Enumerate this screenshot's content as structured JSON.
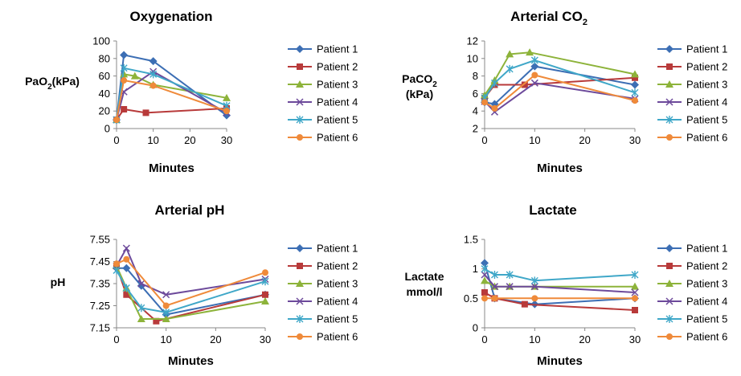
{
  "chart_data": [
    {
      "type": "line",
      "title": "Oxygenation",
      "title_sub": "",
      "ylabel_parts": [
        {
          "t": "PaO"
        },
        {
          "t": "2",
          "sub": true
        },
        {
          "t": "(kPa)"
        }
      ],
      "ylabel_line2": [],
      "xlabel": "Minutes",
      "xticks": [
        0,
        10,
        20,
        30
      ],
      "yticks": [
        0,
        20,
        40,
        60,
        80,
        100
      ],
      "ytick_labels": [
        "0",
        "20",
        "40",
        "60",
        "80",
        "100"
      ],
      "xlim": [
        0,
        30
      ],
      "ylim": [
        0,
        100
      ],
      "series": [
        {
          "name": "Patient 1",
          "x": [
            0,
            2,
            10,
            30
          ],
          "y": [
            10,
            84,
            77,
            15
          ]
        },
        {
          "name": "Patient 2",
          "x": [
            0,
            2,
            8,
            30
          ],
          "y": [
            10,
            22,
            18,
            23
          ]
        },
        {
          "name": "Patient 3",
          "x": [
            0,
            2,
            5,
            10,
            30
          ],
          "y": [
            10,
            62,
            60,
            50,
            35
          ]
        },
        {
          "name": "Patient 4",
          "x": [
            0,
            2,
            10,
            30
          ],
          "y": [
            10,
            42,
            65,
            18
          ]
        },
        {
          "name": "Patient 5",
          "x": [
            0,
            2,
            10,
            30
          ],
          "y": [
            10,
            69,
            62,
            26
          ]
        },
        {
          "name": "Patient 6",
          "x": [
            0,
            2,
            10,
            30
          ],
          "y": [
            10,
            55,
            49,
            20
          ]
        }
      ]
    },
    {
      "type": "line",
      "title": "Arterial CO",
      "title_sub": "2",
      "ylabel_parts": [
        {
          "t": "PaCO"
        },
        {
          "t": "2",
          "sub": true
        }
      ],
      "ylabel_line2": [
        {
          "t": "(kPa)"
        }
      ],
      "xlabel": "Minutes",
      "xticks": [
        0,
        10,
        20,
        30
      ],
      "yticks": [
        2,
        4,
        6,
        8,
        10,
        12
      ],
      "ytick_labels": [
        "2",
        "4",
        "6",
        "8",
        "10",
        "12"
      ],
      "xlim": [
        0,
        30
      ],
      "ylim": [
        2,
        12
      ],
      "series": [
        {
          "name": "Patient 1",
          "x": [
            0,
            2,
            10,
            30
          ],
          "y": [
            5.0,
            4.8,
            9.1,
            7.0
          ]
        },
        {
          "name": "Patient 2",
          "x": [
            0,
            2,
            8,
            30
          ],
          "y": [
            5.5,
            7.0,
            7.0,
            7.8
          ]
        },
        {
          "name": "Patient 3",
          "x": [
            0,
            2,
            5,
            9,
            30
          ],
          "y": [
            5.8,
            7.5,
            10.5,
            10.7,
            8.2
          ]
        },
        {
          "name": "Patient 4",
          "x": [
            0,
            2,
            10,
            30
          ],
          "y": [
            5.1,
            3.9,
            7.2,
            5.4
          ]
        },
        {
          "name": "Patient 5",
          "x": [
            0,
            2,
            5,
            10,
            30
          ],
          "y": [
            5.5,
            7.2,
            8.8,
            9.8,
            6.1
          ]
        },
        {
          "name": "Patient 6",
          "x": [
            0,
            2,
            10,
            30
          ],
          "y": [
            5.0,
            4.3,
            8.1,
            5.2
          ]
        }
      ]
    },
    {
      "type": "line",
      "title": "Arterial pH",
      "title_sub": "",
      "ylabel_parts": [
        {
          "t": "pH"
        }
      ],
      "ylabel_line2": [],
      "xlabel": "Minutes",
      "xticks": [
        0,
        10,
        20,
        30
      ],
      "yticks": [
        7.15,
        7.25,
        7.35,
        7.45,
        7.55
      ],
      "ytick_labels": [
        "7.15",
        "7.25",
        "7.35",
        "7.45",
        "7.55"
      ],
      "xlim": [
        0,
        30
      ],
      "ylim": [
        7.15,
        7.55
      ],
      "series": [
        {
          "name": "Patient 1",
          "x": [
            0,
            2,
            5,
            10,
            30
          ],
          "y": [
            7.42,
            7.42,
            7.34,
            7.21,
            7.3
          ]
        },
        {
          "name": "Patient 2",
          "x": [
            0,
            2,
            8,
            30
          ],
          "y": [
            7.43,
            7.3,
            7.18,
            7.3
          ]
        },
        {
          "name": "Patient 3",
          "x": [
            0,
            2,
            5,
            10,
            30
          ],
          "y": [
            7.43,
            7.33,
            7.19,
            7.19,
            7.27
          ]
        },
        {
          "name": "Patient 4",
          "x": [
            0,
            2,
            5,
            10,
            30
          ],
          "y": [
            7.43,
            7.51,
            7.35,
            7.3,
            7.37
          ]
        },
        {
          "name": "Patient 5",
          "x": [
            0,
            2,
            5,
            10,
            30
          ],
          "y": [
            7.41,
            7.33,
            7.24,
            7.22,
            7.36
          ]
        },
        {
          "name": "Patient 6",
          "x": [
            0,
            2,
            10,
            30
          ],
          "y": [
            7.44,
            7.46,
            7.25,
            7.4
          ]
        }
      ]
    },
    {
      "type": "line",
      "title": "Lactate",
      "title_sub": "",
      "ylabel_parts": [
        {
          "t": "Lactate"
        }
      ],
      "ylabel_line2": [
        {
          "t": "mmol/l"
        }
      ],
      "xlabel": "Minutes",
      "xticks": [
        0,
        10,
        20,
        30
      ],
      "yticks": [
        0,
        0.5,
        1,
        1.5
      ],
      "ytick_labels": [
        "0",
        "0.5",
        "1",
        "1.5"
      ],
      "xlim": [
        0,
        30
      ],
      "ylim": [
        0,
        1.5
      ],
      "series": [
        {
          "name": "Patient 1",
          "x": [
            0,
            2,
            10,
            30
          ],
          "y": [
            1.1,
            0.5,
            0.4,
            0.5
          ]
        },
        {
          "name": "Patient 2",
          "x": [
            0,
            2,
            8,
            30
          ],
          "y": [
            0.6,
            0.5,
            0.4,
            0.3
          ]
        },
        {
          "name": "Patient 3",
          "x": [
            0,
            2,
            5,
            10,
            30
          ],
          "y": [
            0.8,
            0.7,
            0.7,
            0.7,
            0.7
          ]
        },
        {
          "name": "Patient 4",
          "x": [
            0,
            2,
            5,
            10,
            30
          ],
          "y": [
            0.9,
            0.7,
            0.7,
            0.7,
            0.6
          ]
        },
        {
          "name": "Patient 5",
          "x": [
            0,
            2,
            5,
            10,
            30
          ],
          "y": [
            1.0,
            0.9,
            0.9,
            0.8,
            0.9
          ]
        },
        {
          "name": "Patient 6",
          "x": [
            0,
            2,
            10,
            30
          ],
          "y": [
            0.5,
            0.5,
            0.5,
            0.5
          ]
        }
      ]
    }
  ],
  "series_style": [
    {
      "color": "#3C6EB4",
      "marker": "diamond"
    },
    {
      "color": "#B83A3A",
      "marker": "square"
    },
    {
      "color": "#8DB33A",
      "marker": "triangle"
    },
    {
      "color": "#6D4A9B",
      "marker": "x"
    },
    {
      "color": "#3FA7C8",
      "marker": "star"
    },
    {
      "color": "#EF8A3A",
      "marker": "circle"
    }
  ]
}
